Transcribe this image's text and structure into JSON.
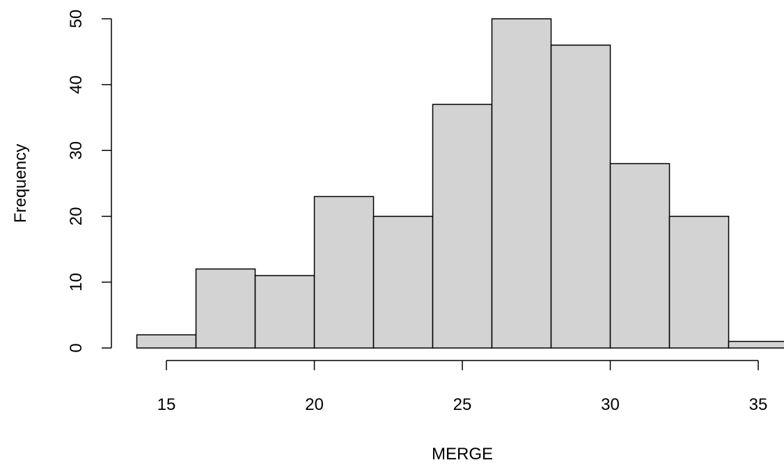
{
  "chart_data": {
    "type": "bar",
    "subtype": "histogram",
    "title": "",
    "xlabel": "MERGE",
    "ylabel": "Frequency",
    "bins": [
      {
        "start": 14,
        "end": 16,
        "count": 2
      },
      {
        "start": 16,
        "end": 18,
        "count": 12
      },
      {
        "start": 18,
        "end": 20,
        "count": 11
      },
      {
        "start": 20,
        "end": 22,
        "count": 23
      },
      {
        "start": 22,
        "end": 24,
        "count": 20
      },
      {
        "start": 24,
        "end": 26,
        "count": 37
      },
      {
        "start": 26,
        "end": 28,
        "count": 50
      },
      {
        "start": 28,
        "end": 30,
        "count": 46
      },
      {
        "start": 30,
        "end": 32,
        "count": 28
      },
      {
        "start": 32,
        "end": 34,
        "count": 20
      },
      {
        "start": 34,
        "end": 36,
        "count": 1
      }
    ],
    "xticks": [
      15,
      20,
      25,
      30,
      35
    ],
    "yticks": [
      0,
      10,
      20,
      30,
      40,
      50
    ],
    "xlim": [
      14,
      36
    ],
    "ylim": [
      0,
      50
    ],
    "grid": false,
    "bar_fill": "#d3d3d3",
    "bar_stroke": "#000000"
  }
}
